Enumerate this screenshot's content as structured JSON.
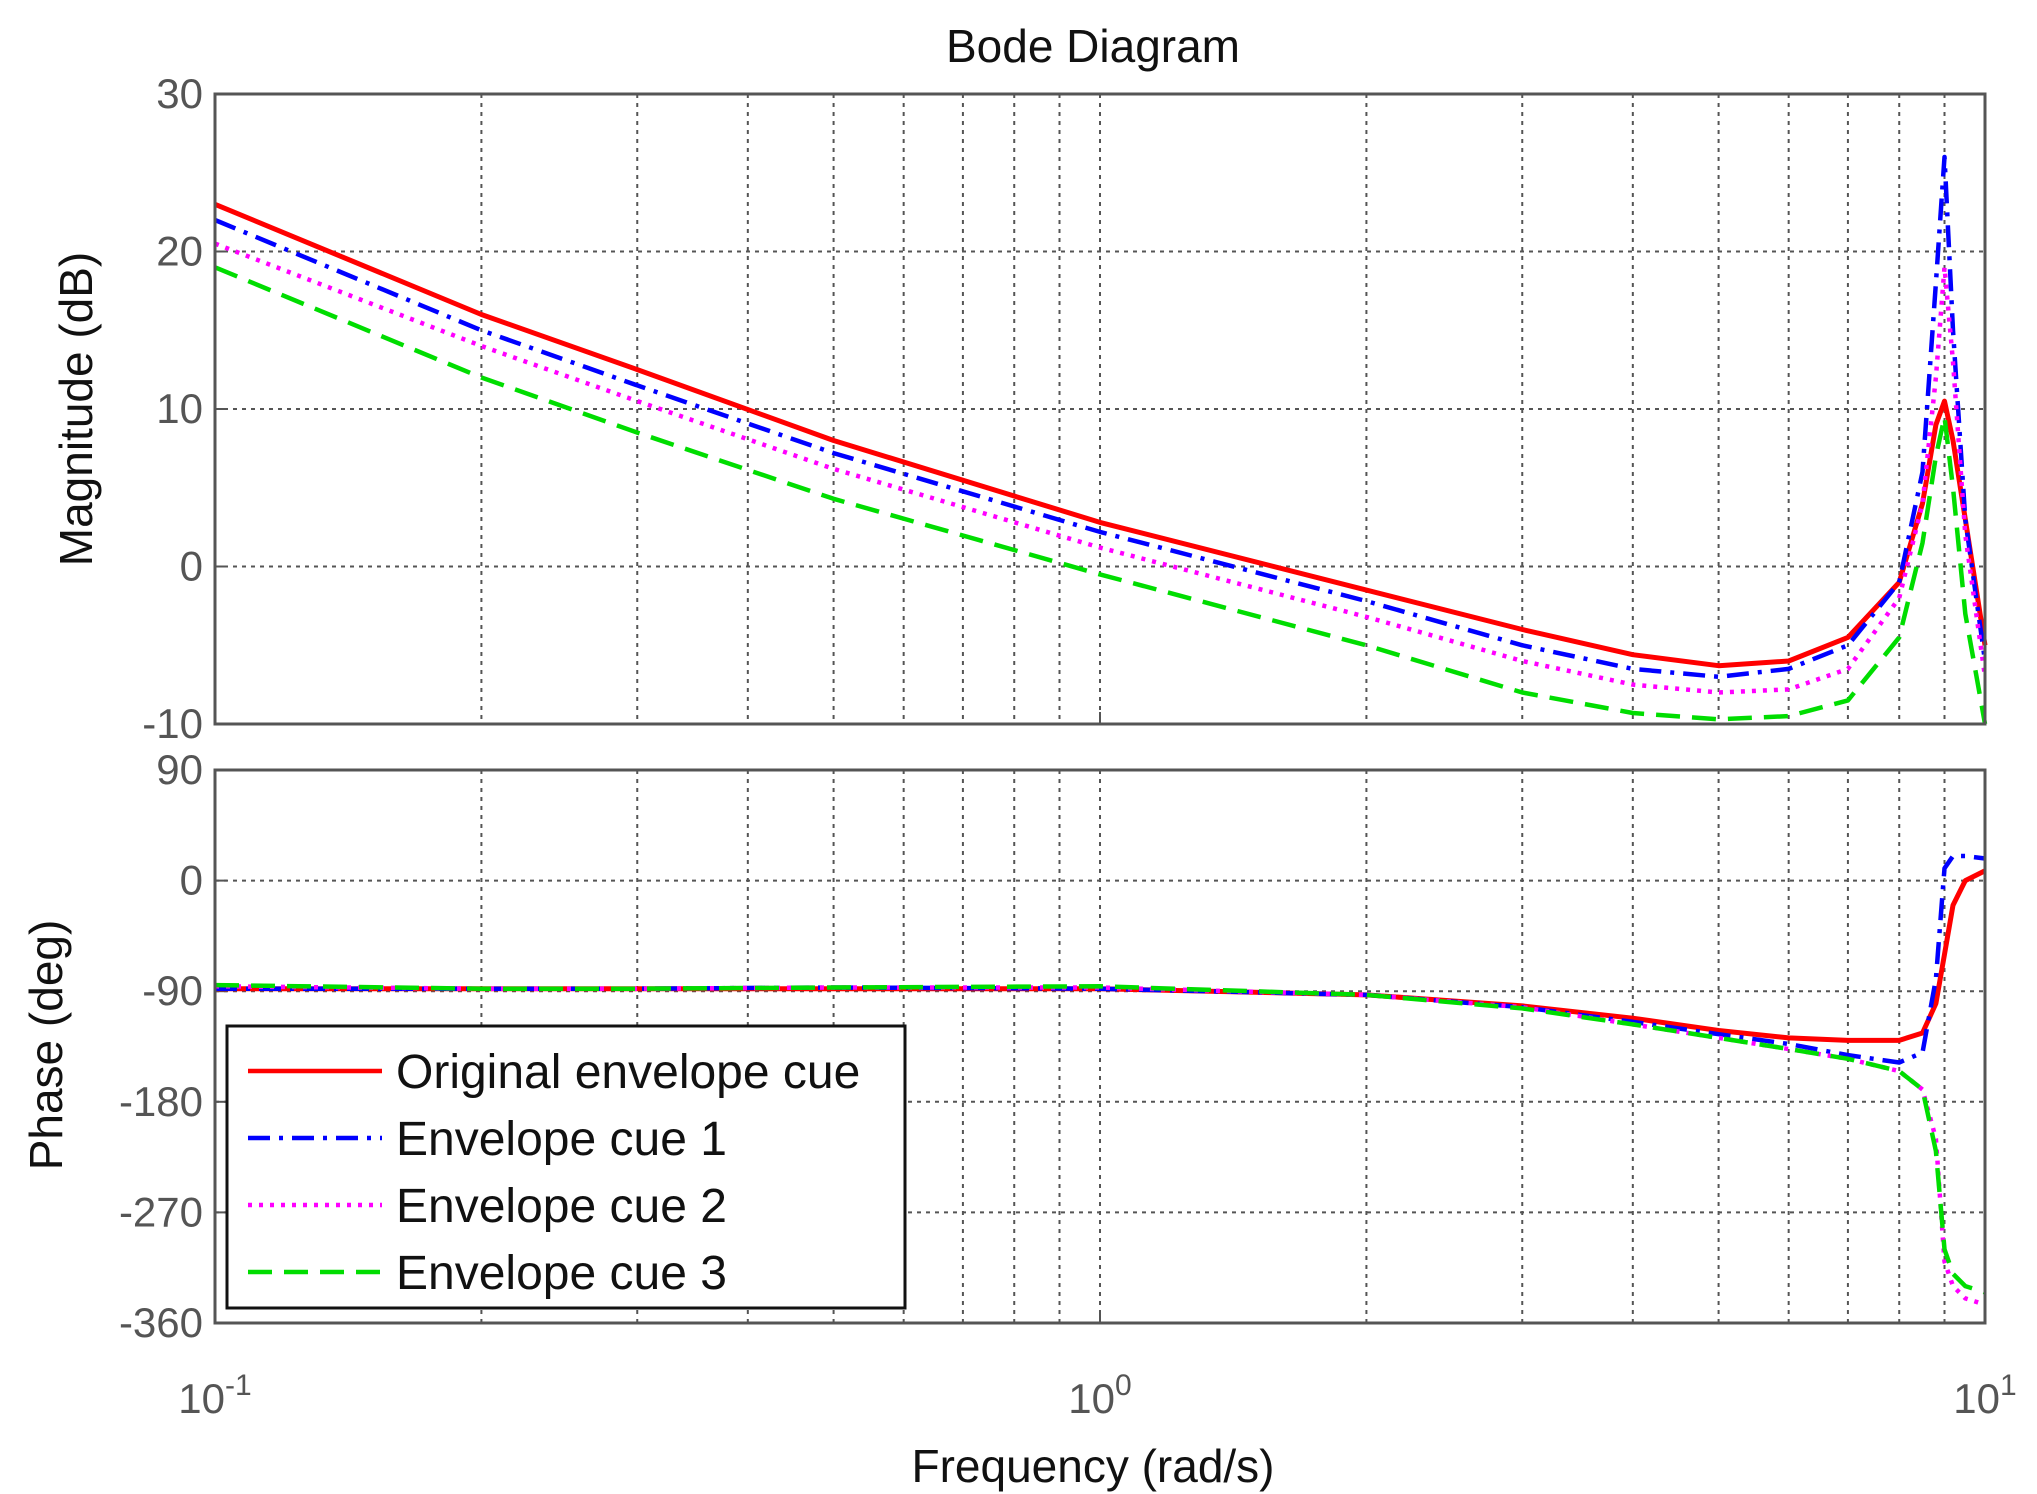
{
  "chart_data": {
    "type": "line",
    "title": "Bode Diagram",
    "xlabel": "Frequency  (rad/s)",
    "x_scale": "log",
    "xlim": [
      0.1,
      10
    ],
    "x_tick_values": [
      0.1,
      1,
      10
    ],
    "x_tick_labels": [
      {
        "base": "10",
        "exp": "-1"
      },
      {
        "base": "10",
        "exp": "0"
      },
      {
        "base": "10",
        "exp": "1"
      }
    ],
    "legend": {
      "position": "lower-left of phase plot",
      "entries": [
        {
          "label": "Original envelope cue",
          "series": 0
        },
        {
          "label": "Envelope cue 1",
          "series": 1
        },
        {
          "label": "Envelope cue 2",
          "series": 2
        },
        {
          "label": "Envelope cue 3",
          "series": 3
        }
      ]
    },
    "series_style": [
      {
        "color": "#ff0000",
        "dash": "none"
      },
      {
        "color": "#0000ff",
        "dash": "dashdot"
      },
      {
        "color": "#ff00ff",
        "dash": "dotted"
      },
      {
        "color": "#00dd00",
        "dash": "dashed"
      }
    ],
    "x": [
      0.1,
      0.2,
      0.3,
      0.5,
      1,
      2,
      3,
      4,
      5,
      6,
      7,
      8,
      8.5,
      8.8,
      9.0,
      9.2,
      9.5,
      10
    ],
    "subplots": [
      {
        "name": "magnitude",
        "ylabel": "Magnitude (dB)",
        "ylim": [
          -10,
          30
        ],
        "yticks": [
          -10,
          0,
          10,
          20,
          30
        ],
        "series": [
          {
            "name": "Original envelope cue",
            "values": [
              23,
              16,
              12.5,
              8,
              2.8,
              -1.5,
              -4,
              -5.6,
              -6.3,
              -6,
              -4.5,
              -1,
              4,
              9,
              10.5,
              8,
              3,
              -5
            ]
          },
          {
            "name": "Envelope cue 1",
            "values": [
              22,
              15,
              11.5,
              7.2,
              2.2,
              -2.2,
              -5,
              -6.5,
              -7,
              -6.5,
              -5,
              -1,
              6,
              18,
              26,
              15,
              3,
              -6
            ]
          },
          {
            "name": "Envelope cue 2",
            "values": [
              20.5,
              14,
              10.5,
              6.2,
              1.2,
              -3.2,
              -6,
              -7.5,
              -8,
              -7.8,
              -6.5,
              -2,
              4,
              12,
              19,
              13,
              2,
              -7
            ]
          },
          {
            "name": "Envelope cue 3",
            "values": [
              19,
              12,
              8.5,
              4.3,
              -0.5,
              -5,
              -8,
              -9.3,
              -9.7,
              -9.5,
              -8.5,
              -4.5,
              1.5,
              7,
              9.5,
              5,
              -3,
              -10
            ]
          }
        ]
      },
      {
        "name": "phase",
        "ylabel": "Phase (deg)",
        "ylim": [
          -360,
          90
        ],
        "yticks": [
          -360,
          -270,
          -180,
          -90,
          0,
          90
        ],
        "series": [
          {
            "name": "Original envelope cue",
            "values": [
              -88,
              -88,
              -88,
              -88,
              -88,
              -93,
              -102,
              -112,
              -122,
              -128,
              -130,
              -130,
              -124,
              -100,
              -60,
              -20,
              0,
              8
            ]
          },
          {
            "name": "Envelope cue 1",
            "values": [
              -88,
              -88,
              -88,
              -87,
              -88,
              -93,
              -103,
              -115,
              -125,
              -133,
              -142,
              -148,
              -140,
              -80,
              10,
              20,
              20,
              18
            ]
          },
          {
            "name": "Envelope cue 2",
            "values": [
              -86,
              -88,
              -88,
              -87,
              -87,
              -93,
              -103,
              -117,
              -128,
              -137,
              -145,
              -155,
              -170,
              -210,
              -310,
              -330,
              -340,
              -345
            ]
          },
          {
            "name": "Envelope cue 3",
            "values": [
              -85,
              -88,
              -88,
              -87,
              -86,
              -93,
              -104,
              -117,
              -128,
              -137,
              -145,
              -155,
              -170,
              -220,
              -300,
              -320,
              -330,
              -335
            ]
          }
        ]
      }
    ]
  }
}
